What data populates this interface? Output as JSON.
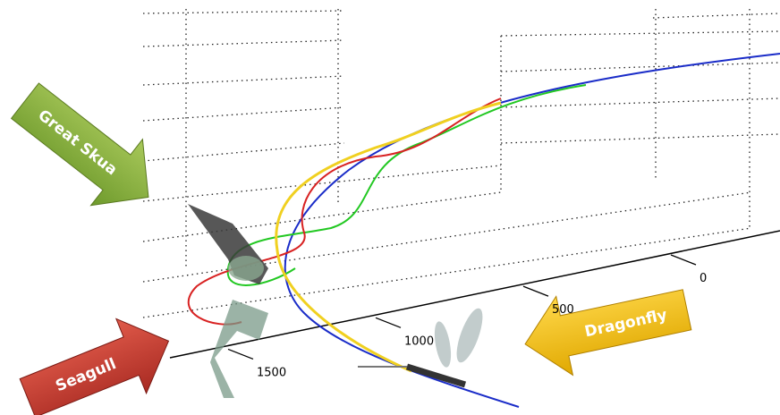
{
  "axis": {
    "ticks": [
      0,
      500,
      1000,
      1500
    ]
  },
  "labels": {
    "great_skua": "Great Skua",
    "seagull": "Seagull",
    "dragonfly": "Dragonfly"
  }
}
